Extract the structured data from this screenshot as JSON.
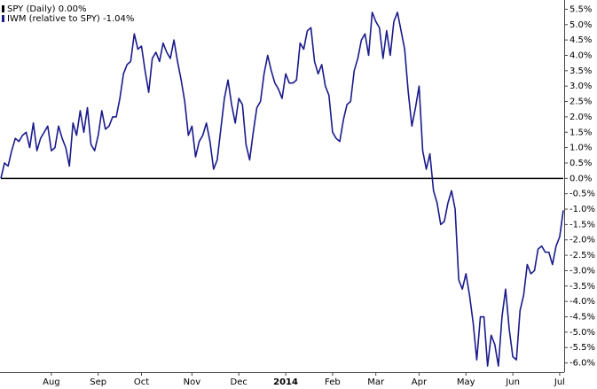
{
  "chart_data": {
    "type": "line",
    "categories": [
      null,
      null,
      null,
      null,
      null,
      null,
      null,
      null,
      null,
      null,
      null,
      null,
      null,
      null,
      "Aug",
      null,
      null,
      null,
      null,
      null,
      null,
      null,
      null,
      null,
      null,
      null,
      null,
      "Sep",
      null,
      null,
      null,
      null,
      null,
      null,
      null,
      null,
      null,
      null,
      null,
      "Oct",
      null,
      null,
      null,
      null,
      null,
      null,
      null,
      null,
      null,
      null,
      null,
      null,
      null,
      "Nov",
      null,
      null,
      null,
      null,
      null,
      null,
      null,
      null,
      null,
      null,
      null,
      null,
      "Dec",
      null,
      null,
      null,
      null,
      null,
      null,
      null,
      null,
      null,
      null,
      null,
      null,
      "2014",
      null,
      null,
      null,
      null,
      null,
      null,
      null,
      null,
      null,
      null,
      null,
      null,
      "Feb",
      null,
      null,
      null,
      null,
      null,
      null,
      null,
      null,
      null,
      null,
      null,
      "Mar",
      null,
      null,
      null,
      null,
      null,
      null,
      null,
      null,
      null,
      null,
      null,
      "Apr",
      null,
      null,
      null,
      null,
      null,
      null,
      null,
      null,
      null,
      null,
      null,
      null,
      "May",
      null,
      null,
      null,
      null,
      null,
      null,
      null,
      null,
      null,
      null,
      null,
      null,
      "Jun",
      null,
      null,
      null,
      null,
      null,
      null,
      null,
      null,
      null,
      null,
      null,
      null,
      "Jul",
      null
    ],
    "series": [
      {
        "name": "SPY (Daily) 0.00%",
        "color": "#000000",
        "values": [
          0,
          0,
          0,
          0,
          0,
          0,
          0,
          0,
          0,
          0,
          0,
          0,
          0,
          0,
          0,
          0,
          0,
          0,
          0,
          0,
          0,
          0,
          0,
          0,
          0,
          0,
          0,
          0,
          0,
          0,
          0,
          0,
          0,
          0,
          0,
          0,
          0,
          0,
          0,
          0,
          0,
          0,
          0,
          0,
          0,
          0,
          0,
          0,
          0,
          0,
          0,
          0,
          0,
          0,
          0,
          0,
          0,
          0,
          0,
          0,
          0,
          0,
          0,
          0,
          0,
          0,
          0,
          0,
          0,
          0,
          0,
          0,
          0,
          0,
          0,
          0,
          0,
          0,
          0,
          0,
          0,
          0,
          0,
          0,
          0,
          0,
          0,
          0,
          0,
          0,
          0,
          0,
          0,
          0,
          0,
          0,
          0,
          0,
          0,
          0,
          0,
          0,
          0,
          0,
          0,
          0,
          0,
          0,
          0,
          0,
          0,
          0,
          0,
          0,
          0,
          0,
          0,
          0,
          0,
          0,
          0,
          0,
          0,
          0,
          0,
          0,
          0,
          0,
          0,
          0,
          0,
          0,
          0,
          0,
          0,
          0,
          0,
          0,
          0,
          0,
          0,
          0,
          0,
          0,
          0,
          0,
          0,
          0,
          0,
          0,
          0,
          0,
          0,
          0,
          0,
          0,
          0
        ]
      },
      {
        "name": "IWM (relative to SPY) -1.04%",
        "color": "#1a1a8c",
        "values": [
          0.0,
          0.5,
          0.4,
          0.9,
          1.3,
          1.2,
          1.4,
          1.5,
          1.0,
          1.8,
          0.9,
          1.3,
          1.5,
          1.7,
          0.9,
          1.0,
          1.7,
          1.3,
          1.0,
          0.4,
          1.8,
          1.4,
          2.2,
          1.5,
          2.3,
          1.1,
          0.9,
          1.4,
          2.2,
          1.6,
          1.7,
          2.0,
          2.0,
          2.6,
          3.4,
          3.7,
          3.8,
          4.7,
          4.2,
          4.3,
          3.5,
          2.8,
          3.9,
          4.1,
          3.8,
          4.4,
          4.1,
          3.9,
          4.5,
          3.8,
          3.2,
          2.5,
          1.4,
          1.7,
          0.7,
          1.2,
          1.4,
          1.8,
          1.2,
          0.3,
          0.6,
          1.6,
          2.6,
          3.2,
          2.4,
          1.8,
          2.6,
          2.4,
          1.1,
          0.6,
          1.5,
          2.3,
          2.5,
          3.4,
          4.0,
          3.5,
          3.1,
          2.9,
          2.6,
          3.4,
          3.1,
          3.1,
          3.2,
          4.4,
          4.2,
          4.8,
          4.9,
          3.8,
          3.4,
          3.7,
          3.0,
          2.7,
          1.5,
          1.3,
          1.2,
          1.9,
          2.4,
          2.5,
          3.5,
          3.9,
          4.5,
          4.7,
          4.0,
          5.4,
          5.1,
          4.9,
          3.9,
          4.8,
          4.0,
          5.1,
          5.4,
          4.8,
          4.2,
          2.8,
          1.7,
          2.3,
          3.0,
          0.9,
          0.3,
          0.8,
          -0.4,
          -0.8,
          -1.5,
          -1.4,
          -0.8,
          -0.4,
          -1.0,
          -3.3,
          -3.6,
          -3.1,
          -3.8,
          -4.7,
          -5.9,
          -4.5,
          -4.5,
          -6.1,
          -5.1,
          -5.4,
          -6.1,
          -4.5,
          -3.6,
          -4.9,
          -5.8,
          -5.9,
          -4.3,
          -3.8,
          -2.8,
          -3.1,
          -3.0,
          -2.3,
          -2.2,
          -2.4,
          -2.4,
          -2.8,
          -2.2,
          -1.9,
          -1.04
        ]
      }
    ],
    "ylim": [
      -6.3,
      5.8
    ],
    "yticks": [
      {
        "value": 5.5,
        "label": "5.5%"
      },
      {
        "value": 5.0,
        "label": "5.0%"
      },
      {
        "value": 4.5,
        "label": "4.5%"
      },
      {
        "value": 4.0,
        "label": "4.0%"
      },
      {
        "value": 3.5,
        "label": "3.5%"
      },
      {
        "value": 3.0,
        "label": "3.0%"
      },
      {
        "value": 2.5,
        "label": "2.5%"
      },
      {
        "value": 2.0,
        "label": "2.0%"
      },
      {
        "value": 1.5,
        "label": "1.5%"
      },
      {
        "value": 1.0,
        "label": "1.0%"
      },
      {
        "value": 0.5,
        "label": "0.5%"
      },
      {
        "value": 0,
        "label": "0.0%"
      },
      {
        "value": -0.5,
        "label": "-0.5%"
      },
      {
        "value": -1.0,
        "label": "-1.0%"
      },
      {
        "value": -1.5,
        "label": "-1.5%"
      },
      {
        "value": -2.0,
        "label": "-2.0%"
      },
      {
        "value": -2.5,
        "label": "-2.5%"
      },
      {
        "value": -3.0,
        "label": "-3.0%"
      },
      {
        "value": -3.5,
        "label": "-3.5%"
      },
      {
        "value": -4.0,
        "label": "-4.0%"
      },
      {
        "value": -4.5,
        "label": "-4.5%"
      },
      {
        "value": -5.0,
        "label": "-5.0%"
      },
      {
        "value": -5.5,
        "label": "-5.5%"
      },
      {
        "value": -6.0,
        "label": "-6.0%"
      }
    ]
  }
}
